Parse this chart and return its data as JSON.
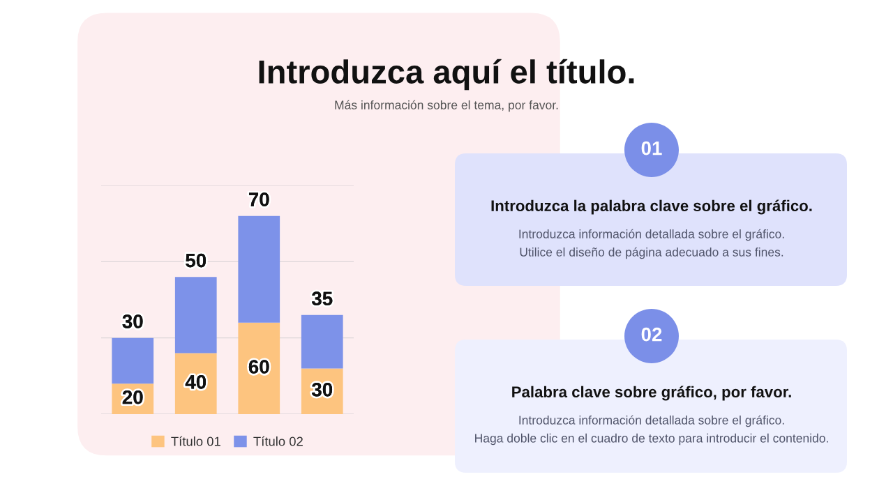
{
  "chart_data": [
    {
      "type": "bar",
      "title": "Introduzca aquí el título.",
      "subtitle": "Más información sobre el tema, por favor.",
      "categories": [
        null,
        null,
        null,
        null
      ],
      "stacked": true,
      "series": [
        {
          "name": "Título 01",
          "color": "#fdc47f",
          "values": [
            20,
            40,
            60,
            30
          ]
        },
        {
          "name": "Título 02",
          "color": "#7d92e9",
          "values": [
            30,
            50,
            70,
            35
          ]
        }
      ],
      "ylim": [
        0,
        150
      ],
      "yticks": [
        {
          "value": 0,
          "label": null
        },
        {
          "value": 50,
          "label": null
        },
        {
          "value": 100,
          "label": null
        },
        {
          "value": 150,
          "label": null
        }
      ],
      "grid": "y",
      "legend": "bottom",
      "data_labels": true
    },
    {
      "type": "other",
      "title": "Introduzca la palabra clave sobre el gráfico.",
      "annotations": [
        "01",
        "Introduzca información detallada sobre el gráfico.",
        "Utilice el diseño de página adecuado a sus fines."
      ]
    },
    {
      "type": "other",
      "title": "Palabra clave sobre gráfico, por favor.",
      "annotations": [
        "02",
        "Introduzca información detallada sobre el gráfico.",
        "Haga doble clic en el cuadro de texto para introducir el contenido."
      ]
    }
  ]
}
